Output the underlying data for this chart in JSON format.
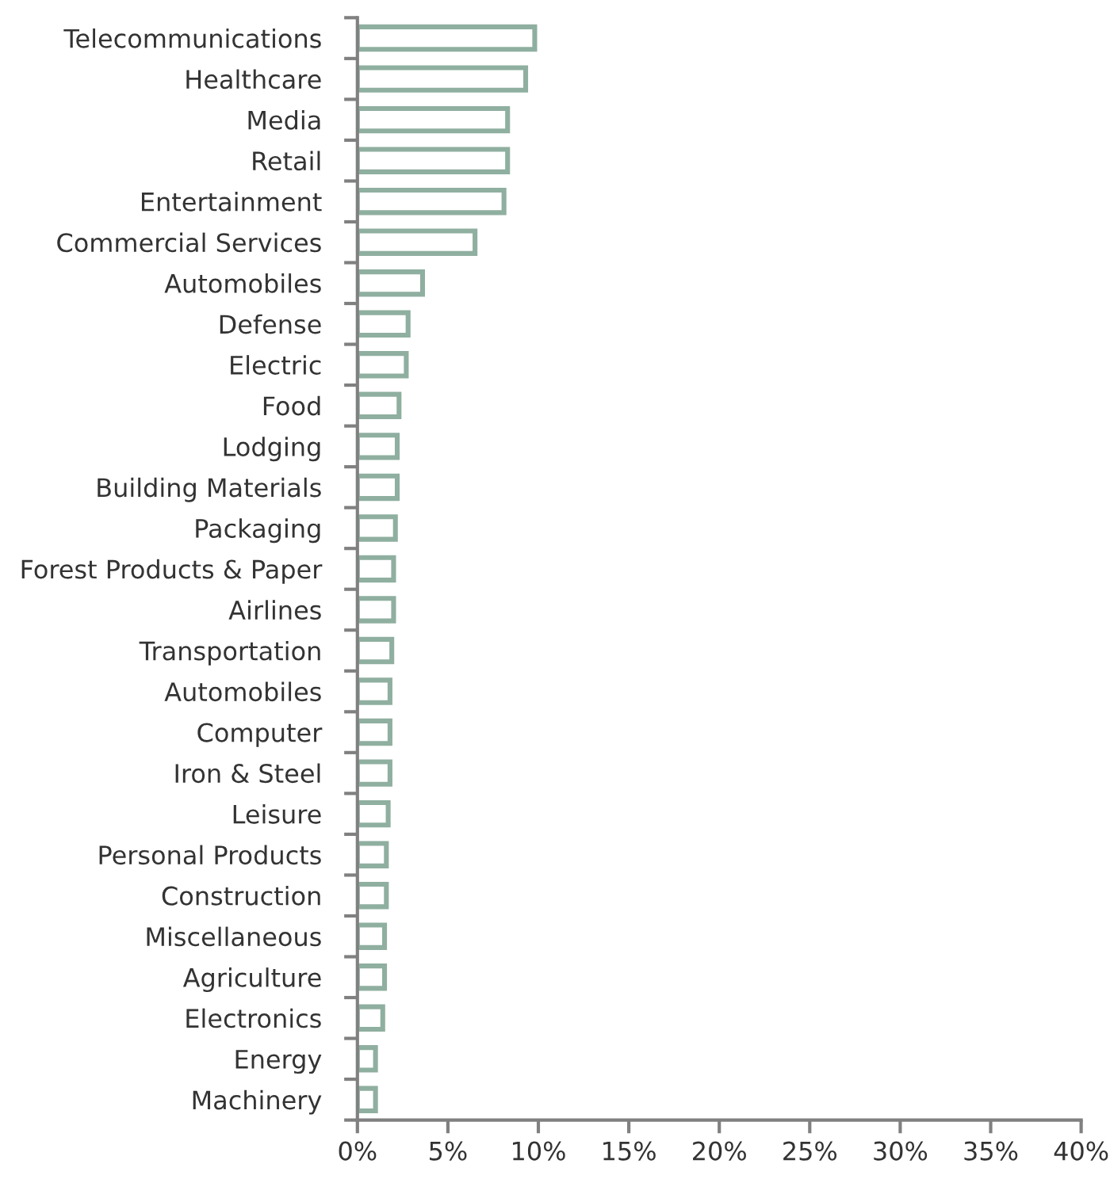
{
  "chart_data": {
    "type": "bar",
    "orientation": "horizontal",
    "categories": [
      "Telecommunications",
      "Healthcare",
      "Media",
      "Retail",
      "Entertainment",
      "Commercial Services",
      "Automobiles",
      "Defense",
      "Electric",
      "Food",
      "Lodging",
      "Building Materials",
      "Packaging",
      "Forest Products & Paper",
      "Airlines",
      "Transportation",
      "Automobiles",
      "Computer",
      "Iron & Steel",
      "Leisure",
      "Personal Products",
      "Construction",
      "Miscellaneous",
      "Agriculture",
      "Electronics",
      "Energy",
      "Machinery"
    ],
    "values": [
      9.8,
      9.3,
      8.3,
      8.3,
      8.1,
      6.5,
      3.6,
      2.8,
      2.7,
      2.3,
      2.2,
      2.2,
      2.1,
      2.0,
      2.0,
      1.9,
      1.8,
      1.8,
      1.8,
      1.7,
      1.6,
      1.6,
      1.5,
      1.5,
      1.4,
      1.0,
      1.0
    ],
    "color": "#8fafa0",
    "xlim": [
      0,
      40
    ],
    "xticks": [
      {
        "value": 0,
        "label": "0%"
      },
      {
        "value": 5,
        "label": "5%"
      },
      {
        "value": 10,
        "label": "10%"
      },
      {
        "value": 15,
        "label": "15%"
      },
      {
        "value": 20,
        "label": "20%"
      },
      {
        "value": 25,
        "label": "25%"
      },
      {
        "value": 30,
        "label": "30%"
      },
      {
        "value": 35,
        "label": "35%"
      },
      {
        "value": 40,
        "label": "40%"
      }
    ],
    "grid": false,
    "legend": false
  }
}
